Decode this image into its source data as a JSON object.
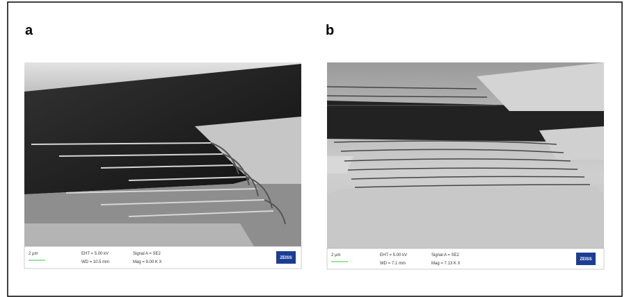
{
  "panels": [
    {
      "label": "a",
      "scale_bar": "2 µm",
      "eht": "EHT = 5.00 kV",
      "wd": "WD = 10.5 mm",
      "signal": "Signal A = SE2",
      "mag": "Mag = 9.00 K X",
      "logo": "ZEISS"
    },
    {
      "label": "b",
      "scale_bar": "2 µm",
      "eht": "EHT = 5.00 kV",
      "wd": "WD = 7.1 mm",
      "signal": "Signal A = SE2",
      "mag": "Mag = 7.13 K X",
      "logo": "ZEISS"
    }
  ]
}
